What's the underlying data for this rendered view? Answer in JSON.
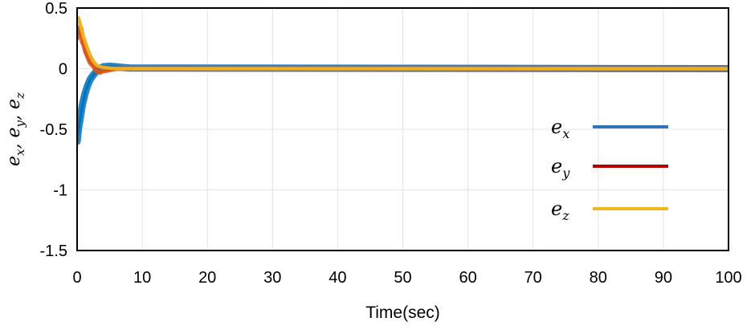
{
  "chart_data": {
    "type": "line",
    "xlabel": "Time(sec)",
    "ylabel": {
      "base": "e",
      "subs": [
        "x",
        "y",
        "z"
      ],
      "sep": ", "
    },
    "xlim": [
      0,
      100
    ],
    "ylim": [
      -1.5,
      0.5
    ],
    "xticks": [
      0,
      10,
      20,
      30,
      40,
      50,
      60,
      70,
      80,
      90,
      100
    ],
    "yticks": [
      0.5,
      0,
      -0.5,
      -1,
      -1.5
    ],
    "ytick_labels": [
      "0.5",
      "0",
      "-0.5",
      "-1",
      "-1.5"
    ],
    "grid": true,
    "legend_position": "right",
    "series": [
      {
        "name": "e_x",
        "base": "e",
        "sub": "x",
        "color": "#0072BD",
        "x": [
          0,
          0.2,
          0.5,
          0.8,
          1.2,
          1.6,
          2.0,
          2.5,
          3.0,
          3.5,
          4.0,
          5.0,
          6.0,
          7.0,
          8.0,
          100
        ],
        "y": [
          -0.6,
          -0.5,
          -0.4,
          -0.3,
          -0.21,
          -0.14,
          -0.09,
          -0.05,
          -0.02,
          0.0,
          0.015,
          0.02,
          0.015,
          0.01,
          0.005,
          0.0
        ],
        "band": 0.03
      },
      {
        "name": "e_y",
        "base": "e",
        "sub": "y",
        "color": "#D95319",
        "x": [
          0,
          0.2,
          0.4,
          0.6,
          0.8,
          1.0,
          1.3,
          1.6,
          2.0,
          2.5,
          3.0,
          3.5,
          4.0,
          5.0,
          6.0,
          8.0,
          100
        ],
        "y": [
          0.25,
          0.34,
          0.28,
          0.33,
          0.22,
          0.2,
          0.14,
          0.1,
          0.05,
          0.02,
          -0.02,
          -0.03,
          -0.02,
          -0.01,
          0.0,
          0.0,
          0.0
        ],
        "band": 0.02
      },
      {
        "name": "e_z",
        "base": "e",
        "sub": "z",
        "color": "#EDB120",
        "x": [
          0,
          0.2,
          0.5,
          1.0,
          1.5,
          2.0,
          2.5,
          3.0,
          3.5,
          4.0,
          5.0,
          6.0,
          8.0,
          100
        ],
        "y": [
          0.4,
          0.42,
          0.36,
          0.26,
          0.18,
          0.11,
          0.06,
          0.03,
          0.015,
          0.01,
          0.005,
          0.0,
          0.0,
          0.0
        ],
        "band": 0.015
      }
    ]
  },
  "legend_colors": {
    "e_x": "#2E75B6",
    "e_y": "#B30000",
    "e_z": "#F0B81E"
  }
}
